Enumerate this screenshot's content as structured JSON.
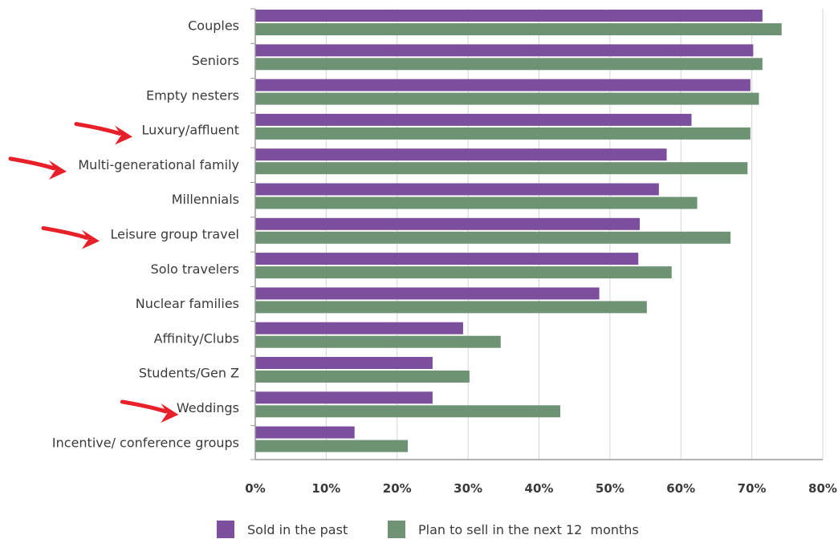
{
  "chart_data": {
    "type": "bar",
    "orientation": "horizontal",
    "categories": [
      "Couples",
      "Seniors",
      "Empty nesters",
      "Luxury/affluent",
      "Multi-generational family",
      "Millennials",
      "Leisure group travel",
      "Solo travelers",
      "Nuclear families",
      "Affinity/Clubs",
      "Students/Gen Z",
      "Weddings",
      "Incentive/ conference groups"
    ],
    "series": [
      {
        "name": "Sold in the past",
        "color": "#7b4f9d",
        "values": [
          71.5,
          70.2,
          69.8,
          61.5,
          58.0,
          56.9,
          54.2,
          54.0,
          48.5,
          29.3,
          25.0,
          25.0,
          14.0
        ]
      },
      {
        "name": "Plan to sell in the next 12  months",
        "color": "#6e9274",
        "values": [
          74.2,
          71.5,
          71.0,
          69.8,
          69.4,
          62.3,
          67.0,
          58.7,
          55.2,
          34.6,
          30.2,
          43.0,
          21.5
        ]
      }
    ],
    "xlim": [
      0,
      80
    ],
    "x_ticks": [
      "0%",
      "10%",
      "20%",
      "30%",
      "40%",
      "50%",
      "60%",
      "70%",
      "80%"
    ],
    "grid": "vertical",
    "legend_position": "bottom",
    "title": "",
    "xlabel": "",
    "ylabel": "",
    "annotations": {
      "arrow_color": "#e8202a",
      "arrows_point_to": [
        "Luxury/affluent",
        "Multi-generational family",
        "Leisure group travel",
        "Weddings"
      ]
    }
  }
}
